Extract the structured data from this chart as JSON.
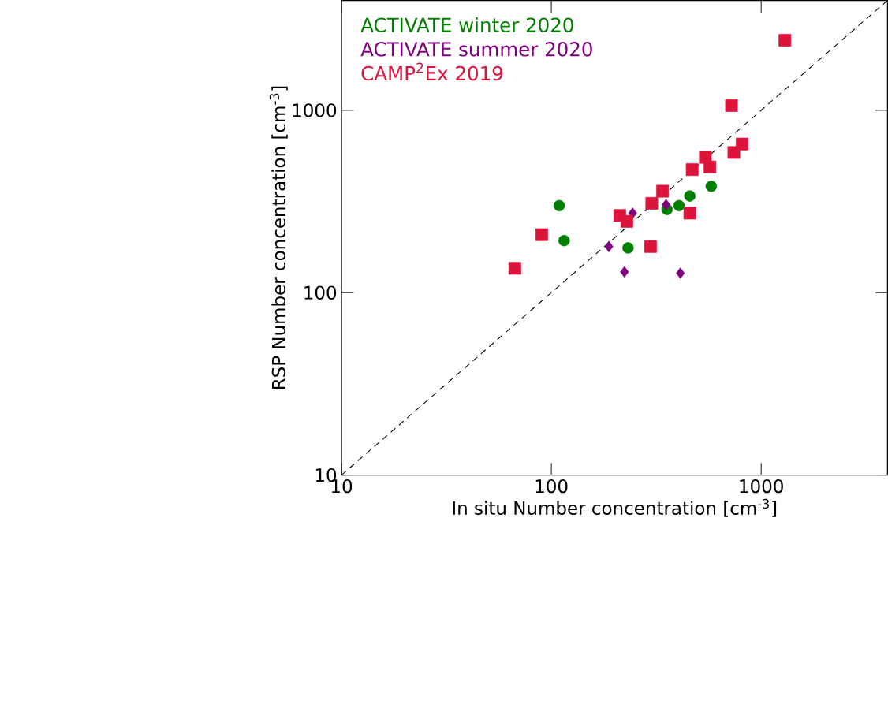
{
  "chart_data": {
    "type": "scatter",
    "xlabel": "In situ Number concentration [cm$^{-3}$]",
    "ylabel": "RSP Number concentration [cm$^{-3}$]",
    "log": "xy",
    "xlim": [
      10,
      4000
    ],
    "ylim": [
      10,
      4000
    ],
    "xticks": [
      10,
      100,
      1000
    ],
    "yticks": [
      10,
      100,
      1000
    ],
    "grid": false,
    "legend": "top left",
    "series": [
      {
        "name": "ACTIVATE winter 2020",
        "color": "#008000",
        "marker": "circle",
        "x": [
          109,
          115,
          232,
          356,
          406,
          457,
          578
        ],
        "values": [
          300,
          193,
          176,
          286,
          300,
          339,
          383
        ]
      },
      {
        "name": "ACTIVATE summer 2020",
        "color": "#800080",
        "marker": "diamond",
        "x": [
          244,
          188,
          223,
          412,
          352
        ],
        "values": [
          273,
          179,
          130,
          128,
          304
        ]
      },
      {
        "name": "CAMP$^{2}$Ex 2019",
        "color": "#dc143c",
        "marker": "square",
        "x": [
          67,
          90,
          212,
          229,
          297,
          301,
          339,
          457,
          469,
          570,
          542,
          811,
          741,
          722,
          1297
        ],
        "values": [
          136,
          208,
          265,
          246,
          179,
          309,
          360,
          273,
          473,
          489,
          552,
          653,
          587,
          1062,
          2420
        ]
      },
      {
        "type": "line",
        "color": "#000000",
        "line_style": "dashed",
        "marker": "none",
        "x": [
          10,
          4000
        ],
        "values": [
          10,
          4000
        ]
      }
    ]
  }
}
